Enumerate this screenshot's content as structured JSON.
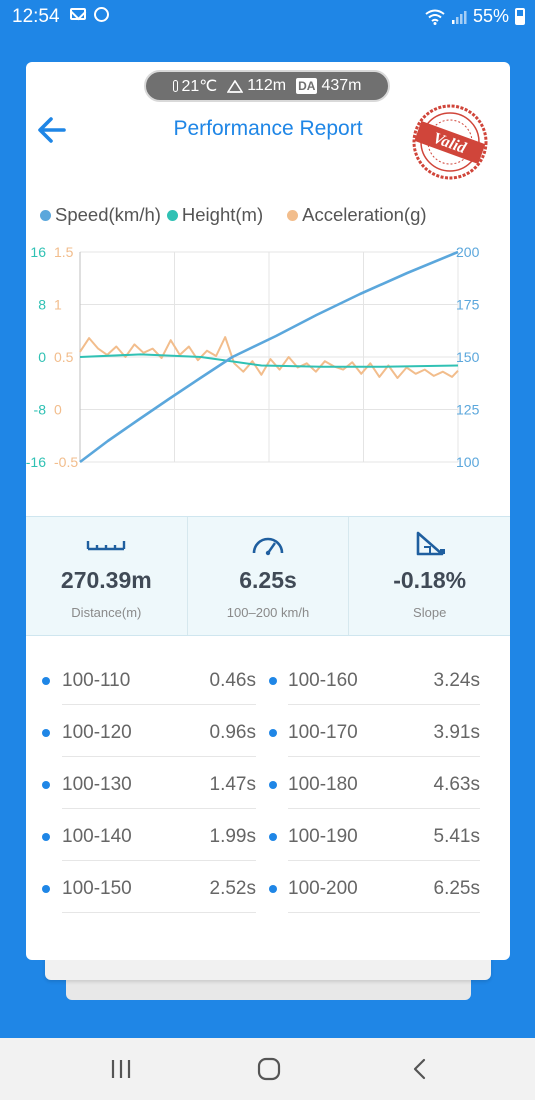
{
  "status_bar": {
    "time": "12:54",
    "battery": "55%"
  },
  "environment": {
    "temperature": "21℃",
    "altitude": "112m",
    "da_badge": "DA",
    "density_altitude": "437m"
  },
  "header": {
    "title": "Performance Report",
    "stamp_text": "Valid"
  },
  "colors": {
    "accent": "#1f86e6",
    "speed": "#5ba7dc",
    "height": "#30c1b4",
    "acceleration": "#f2bd8c",
    "stamp": "#d0453a"
  },
  "chart_data": {
    "type": "line",
    "legend": [
      "Speed(km/h)",
      "Height(m)",
      "Acceleration(g)"
    ],
    "legend_position": "top",
    "grid": true,
    "axes": {
      "height_axis": {
        "ticks": [
          "16",
          "8",
          "0",
          "-8",
          "-16"
        ],
        "range": [
          -16,
          16
        ]
      },
      "acceleration_axis": {
        "ticks": [
          "1.5",
          "1",
          "0.5",
          "0",
          "-0.5"
        ],
        "range": [
          -0.5,
          1.5
        ]
      },
      "speed_axis": {
        "ticks": [
          "200",
          "175",
          "150",
          "125",
          "100"
        ],
        "range": [
          100,
          200
        ]
      }
    },
    "x_range": [
      0,
      6.25
    ],
    "series": [
      {
        "name": "Speed(km/h)",
        "axis": "speed",
        "x": [
          0,
          0.46,
          0.96,
          1.47,
          1.99,
          2.52,
          3.24,
          3.91,
          4.63,
          5.41,
          6.25
        ],
        "values": [
          100,
          110,
          120,
          130,
          140,
          150,
          160,
          170,
          180,
          190,
          200
        ]
      },
      {
        "name": "Height(m)",
        "axis": "height",
        "x": [
          0,
          1,
          2,
          3,
          4,
          5,
          6.25
        ],
        "values": [
          0,
          0.4,
          0,
          -1.3,
          -1.5,
          -1.5,
          -1.3
        ]
      },
      {
        "name": "Acceleration(g)",
        "axis": "acceleration",
        "x": [
          0,
          0.15,
          0.3,
          0.45,
          0.6,
          0.75,
          0.9,
          1.05,
          1.2,
          1.35,
          1.5,
          1.65,
          1.8,
          1.95,
          2.1,
          2.25,
          2.4,
          2.55,
          2.7,
          2.85,
          3.0,
          3.15,
          3.3,
          3.45,
          3.6,
          3.75,
          3.9,
          4.05,
          4.2,
          4.35,
          4.5,
          4.65,
          4.8,
          4.95,
          5.1,
          5.25,
          5.4,
          5.55,
          5.7,
          5.85,
          6.0,
          6.15,
          6.25
        ],
        "values": [
          0.55,
          0.68,
          0.58,
          0.52,
          0.6,
          0.5,
          0.62,
          0.54,
          0.58,
          0.49,
          0.66,
          0.52,
          0.6,
          0.47,
          0.56,
          0.51,
          0.69,
          0.44,
          0.36,
          0.46,
          0.33,
          0.48,
          0.38,
          0.5,
          0.4,
          0.44,
          0.36,
          0.46,
          0.41,
          0.38,
          0.45,
          0.34,
          0.44,
          0.31,
          0.42,
          0.3,
          0.4,
          0.34,
          0.38,
          0.32,
          0.36,
          0.31,
          0.37
        ]
      }
    ]
  },
  "stats": [
    {
      "value": "270.39m",
      "label": "Distance(m)",
      "icon": "ruler-icon"
    },
    {
      "value": "6.25s",
      "label": "100–200 km/h",
      "icon": "speedometer-icon"
    },
    {
      "value": "-0.18%",
      "label": "Slope",
      "icon": "slope-icon"
    }
  ],
  "splits": [
    [
      {
        "range": "100-110",
        "time": "0.46s"
      },
      {
        "range": "100-160",
        "time": "3.24s"
      }
    ],
    [
      {
        "range": "100-120",
        "time": "0.96s"
      },
      {
        "range": "100-170",
        "time": "3.91s"
      }
    ],
    [
      {
        "range": "100-130",
        "time": "1.47s"
      },
      {
        "range": "100-180",
        "time": "4.63s"
      }
    ],
    [
      {
        "range": "100-140",
        "time": "1.99s"
      },
      {
        "range": "100-190",
        "time": "5.41s"
      }
    ],
    [
      {
        "range": "100-150",
        "time": "2.52s"
      },
      {
        "range": "100-200",
        "time": "6.25s"
      }
    ]
  ]
}
